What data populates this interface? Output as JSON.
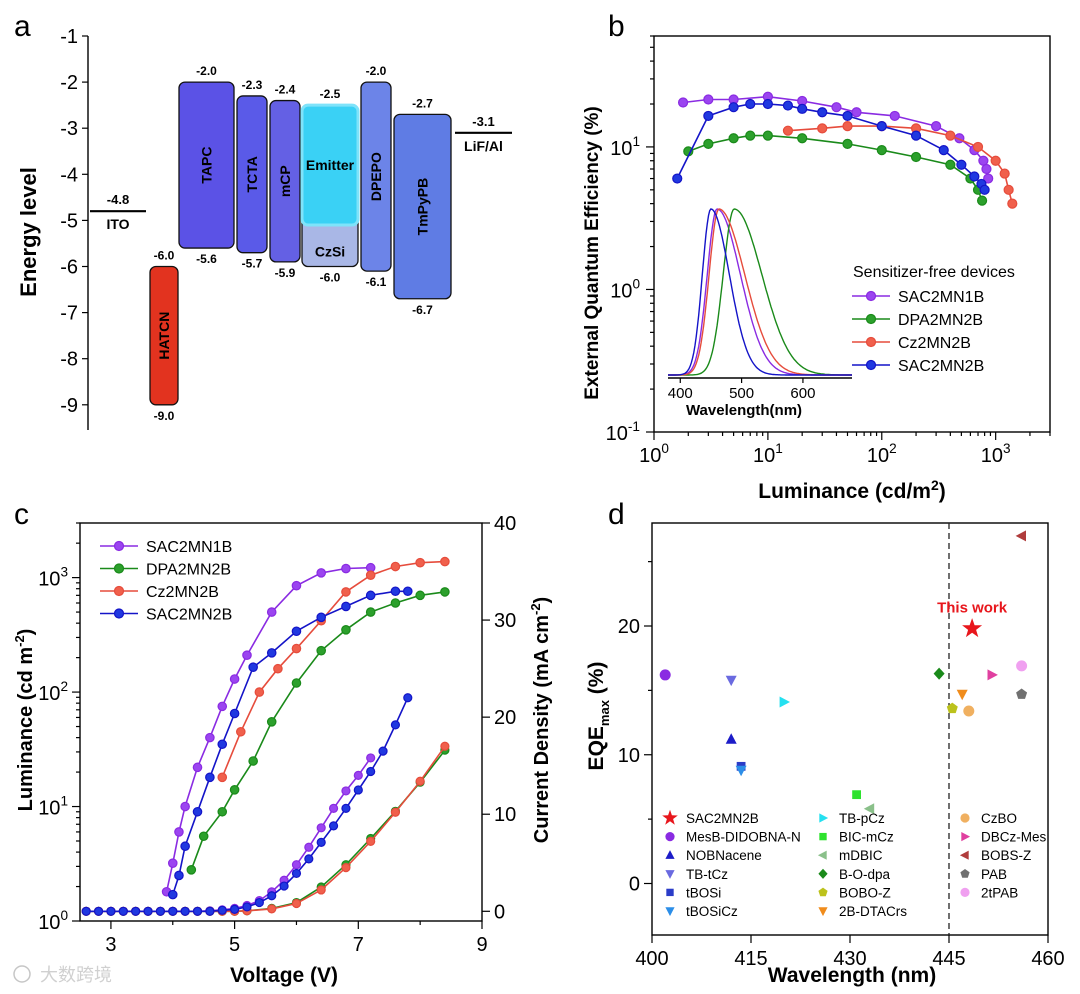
{
  "panels": {
    "a": {
      "letter": "a",
      "ylabel": "Energy level",
      "ylim": [
        -9.5,
        -1
      ],
      "yticks": [
        -1,
        -2,
        -3,
        -4,
        -5,
        -6,
        -7,
        -8,
        -9
      ],
      "levels": [
        {
          "name": "ITO",
          "value": -4.8,
          "value_label": "-4.8",
          "color": "#000000"
        },
        {
          "name": "LiF/Al",
          "value": -3.1,
          "value_label": "-3.1",
          "color": "#000000"
        }
      ],
      "layers": [
        {
          "name": "HATCN",
          "top": -6.0,
          "bottom": -9.0,
          "top_label": "-6.0",
          "bottom_label": "-9.0",
          "color": "#e2331f"
        },
        {
          "name": "TAPC",
          "top": -2.0,
          "bottom": -5.6,
          "top_label": "-2.0",
          "bottom_label": "-5.6",
          "color": "#5b52e6"
        },
        {
          "name": "TCTA",
          "top": -2.3,
          "bottom": -5.7,
          "top_label": "-2.3",
          "bottom_label": "-5.7",
          "color": "#5a5ae8"
        },
        {
          "name": "mCP",
          "top": -2.4,
          "bottom": -5.9,
          "top_label": "-2.4",
          "bottom_label": "-5.9",
          "color": "#6460e4"
        },
        {
          "name": "CzSi",
          "top": -2.5,
          "bottom": -6.0,
          "top_label": "-2.5",
          "bottom_label": "-6.0",
          "color": "#a9b7e6"
        },
        {
          "name": "Emitter",
          "top": -2.5,
          "bottom": -5.1,
          "color": "#3ad1f5"
        },
        {
          "name": "DPEPO",
          "top": -2.0,
          "bottom": -6.1,
          "top_label": "-2.0",
          "bottom_label": "-6.1",
          "color": "#6c84e8"
        },
        {
          "name": "TmPyPB",
          "top": -2.7,
          "bottom": -6.7,
          "top_label": "-2.7",
          "bottom_label": "-6.7",
          "color": "#5f7ce4"
        }
      ]
    },
    "b": {
      "letter": "b",
      "type": "line",
      "xlabel": "Luminance (cd/m",
      "xlabel_sup": "2",
      "xlabel_end": ")",
      "ylabel": "External Quantum Efficiency (%)",
      "xscale": "log",
      "yscale": "log",
      "xlim": [
        1,
        3000
      ],
      "ylim": [
        0.1,
        60
      ],
      "xticks": [
        {
          "v": 1,
          "base": "10",
          "exp": "0"
        },
        {
          "v": 10,
          "base": "10",
          "exp": "1"
        },
        {
          "v": 100,
          "base": "10",
          "exp": "2"
        },
        {
          "v": 1000,
          "base": "10",
          "exp": "3"
        }
      ],
      "yticks": [
        {
          "v": 0.1,
          "base": "10",
          "exp": "-1"
        },
        {
          "v": 1,
          "base": "10",
          "exp": "0"
        },
        {
          "v": 10,
          "base": "10",
          "exp": "1"
        }
      ],
      "legend_title": "Sensitizer-free devices",
      "series": [
        {
          "name": "SAC2MN1B",
          "color": "#8a2be2",
          "fill": "#9b45f0",
          "x": [
            1.8,
            3,
            5,
            10,
            20,
            40,
            60,
            130,
            300,
            480,
            650,
            780,
            830,
            860
          ],
          "y": [
            20.5,
            21.5,
            21.5,
            22.5,
            21,
            19,
            17.5,
            16.5,
            14,
            11.5,
            9.5,
            8,
            7,
            6
          ]
        },
        {
          "name": "DPA2MN2B",
          "color": "#1a8a1a",
          "fill": "#2ca02c",
          "x": [
            2,
            3,
            5,
            7,
            10,
            20,
            50,
            100,
            200,
            400,
            600,
            700,
            760
          ],
          "y": [
            9.3,
            10.5,
            11.5,
            12,
            12,
            11.5,
            10.5,
            9.5,
            8.5,
            7.5,
            6,
            5,
            4.2
          ]
        },
        {
          "name": "Cz2MN2B",
          "color": "#e64c3c",
          "fill": "#f0604c",
          "x": [
            15,
            30,
            50,
            100,
            200,
            400,
            700,
            1000,
            1200,
            1300,
            1400
          ],
          "y": [
            13,
            13.5,
            14,
            14,
            13.5,
            12,
            10,
            8,
            6.5,
            5,
            4
          ]
        },
        {
          "name": "SAC2MN2B",
          "color": "#1414c8",
          "fill": "#2038e0",
          "x": [
            1.6,
            3,
            5,
            7,
            10,
            15,
            20,
            30,
            50,
            100,
            200,
            350,
            500,
            650,
            750,
            800
          ],
          "y": [
            6,
            16.5,
            19,
            20,
            20,
            19.5,
            18.5,
            17.5,
            16.5,
            14,
            12,
            9.5,
            7.5,
            6.2,
            5.5,
            5
          ]
        }
      ],
      "inset": {
        "xlabel": "Wavelength(nm)",
        "xlim": [
          380,
          680
        ],
        "xticks": [
          400,
          500,
          600
        ],
        "series": [
          {
            "name": "SAC2MN1B",
            "color": "#8a2be2",
            "peak": 460,
            "sigL": 16,
            "sigR": 38
          },
          {
            "name": "DPA2MN2B",
            "color": "#1a8a1a",
            "peak": 488,
            "sigL": 18,
            "sigR": 45
          },
          {
            "name": "Cz2MN2B",
            "color": "#e64c3c",
            "peak": 463,
            "sigL": 16,
            "sigR": 42
          },
          {
            "name": "SAC2MN2B",
            "color": "#1414c8",
            "peak": 450,
            "sigL": 14,
            "sigR": 30
          }
        ]
      }
    },
    "c": {
      "letter": "c",
      "type": "line",
      "xlabel": "Voltage (V)",
      "ylabel_left": "Luminance (cd m",
      "ylabel_left_sup": "-2",
      "ylabel_left_end": ")",
      "ylabel_right": "Current Density (mA cm",
      "ylabel_right_sup": "-2",
      "ylabel_right_end": ")",
      "xlim": [
        2.5,
        9
      ],
      "xticks": [
        3,
        5,
        7,
        9
      ],
      "ylim_left": [
        1,
        3000
      ],
      "yscale_left": "log",
      "yticks_left": [
        {
          "v": 1,
          "base": "10",
          "exp": "0"
        },
        {
          "v": 10,
          "base": "10",
          "exp": "1"
        },
        {
          "v": 100,
          "base": "10",
          "exp": "2"
        },
        {
          "v": 1000,
          "base": "10",
          "exp": "3"
        }
      ],
      "ylim_right": [
        -1,
        40
      ],
      "yticks_right": [
        0,
        10,
        20,
        30,
        40
      ],
      "luminance": [
        {
          "name": "SAC2MN1B",
          "color": "#8a2be2",
          "fill": "#9b45f0",
          "x": [
            3.9,
            4.0,
            4.1,
            4.2,
            4.4,
            4.6,
            4.8,
            5.0,
            5.2,
            5.6,
            6.0,
            6.4,
            6.8,
            7.2
          ],
          "y": [
            1.8,
            3.2,
            6,
            10,
            22,
            40,
            75,
            130,
            210,
            500,
            850,
            1100,
            1200,
            1220
          ]
        },
        {
          "name": "DPA2MN2B",
          "color": "#1a8a1a",
          "fill": "#2ca02c",
          "x": [
            4.3,
            4.5,
            4.8,
            5.0,
            5.3,
            5.6,
            6.0,
            6.4,
            6.8,
            7.2,
            7.6,
            8.0,
            8.4
          ],
          "y": [
            2.8,
            5.5,
            9,
            14,
            25,
            55,
            120,
            230,
            350,
            500,
            600,
            700,
            750
          ]
        },
        {
          "name": "Cz2MN2B",
          "color": "#e64c3c",
          "fill": "#f0604c",
          "x": [
            4.8,
            5.1,
            5.4,
            5.7,
            6.0,
            6.4,
            6.8,
            7.2,
            7.6,
            8.0,
            8.4
          ],
          "y": [
            18,
            45,
            100,
            160,
            240,
            420,
            750,
            1050,
            1250,
            1350,
            1380
          ]
        },
        {
          "name": "SAC2MN2B",
          "color": "#1414c8",
          "fill": "#2038e0",
          "x": [
            4.0,
            4.1,
            4.2,
            4.4,
            4.6,
            4.8,
            5.0,
            5.3,
            5.6,
            6.0,
            6.4,
            6.8,
            7.2,
            7.6,
            7.8
          ],
          "y": [
            1.7,
            2.5,
            4.5,
            9,
            18,
            35,
            65,
            165,
            220,
            340,
            450,
            560,
            700,
            760,
            760
          ]
        }
      ],
      "current_density": [
        {
          "name": "SAC2MN1B",
          "color": "#8a2be2",
          "fill": "#9b45f0",
          "x": [
            2.6,
            2.8,
            3.0,
            3.2,
            3.4,
            3.6,
            3.8,
            4.0,
            4.2,
            4.4,
            4.6,
            4.8,
            5.0,
            5.2,
            5.4,
            5.6,
            5.8,
            6.0,
            6.2,
            6.4,
            6.6,
            6.8,
            7.0,
            7.2
          ],
          "y": [
            0,
            0,
            0,
            0,
            0,
            0,
            0,
            0,
            0,
            0,
            0.05,
            0.15,
            0.3,
            0.6,
            1.1,
            2.0,
            3.2,
            4.8,
            6.6,
            8.6,
            10.6,
            12.4,
            14.0,
            15.8
          ]
        },
        {
          "name": "DPA2MN2B",
          "color": "#1a8a1a",
          "fill": "#2ca02c",
          "x": [
            2.6,
            2.8,
            3.0,
            3.2,
            3.4,
            3.6,
            3.8,
            4.0,
            4.2,
            4.4,
            4.6,
            4.8,
            5.0,
            5.2,
            5.6,
            6.0,
            6.4,
            6.8,
            7.2,
            7.6,
            8.0,
            8.4
          ],
          "y": [
            0,
            0,
            0,
            0,
            0,
            0,
            0,
            0,
            0,
            0,
            0,
            0,
            0,
            0.05,
            0.3,
            0.9,
            2.5,
            4.8,
            7.5,
            10.3,
            13.3,
            16.6
          ]
        },
        {
          "name": "Cz2MN2B",
          "color": "#e64c3c",
          "fill": "#f0604c",
          "x": [
            2.6,
            2.8,
            3.0,
            3.2,
            3.4,
            3.6,
            3.8,
            4.0,
            4.2,
            4.4,
            4.6,
            4.8,
            5.0,
            5.2,
            5.6,
            6.0,
            6.4,
            6.8,
            7.2,
            7.6,
            8.0,
            8.4
          ],
          "y": [
            0,
            0,
            0,
            0,
            0,
            0,
            0,
            0,
            0,
            0,
            0,
            0,
            0,
            0.05,
            0.25,
            0.8,
            2.2,
            4.5,
            7.2,
            10.2,
            13.4,
            17.0
          ]
        },
        {
          "name": "SAC2MN2B",
          "color": "#1414c8",
          "fill": "#2038e0",
          "x": [
            2.6,
            2.8,
            3.0,
            3.2,
            3.4,
            3.6,
            3.8,
            4.0,
            4.2,
            4.4,
            4.6,
            4.8,
            5.0,
            5.2,
            5.4,
            5.6,
            5.8,
            6.0,
            6.2,
            6.4,
            6.6,
            6.8,
            7.0,
            7.2,
            7.4,
            7.6,
            7.8
          ],
          "y": [
            0,
            0,
            0,
            0,
            0,
            0,
            0,
            0,
            0,
            0,
            0,
            0.1,
            0.2,
            0.45,
            0.9,
            1.6,
            2.6,
            3.9,
            5.4,
            7.1,
            8.8,
            10.6,
            12.5,
            14.4,
            16.5,
            19.2,
            22.0
          ]
        }
      ]
    },
    "d": {
      "letter": "d",
      "type": "scatter",
      "xlabel": "Wavelength (nm)",
      "ylabel": "EQE",
      "ylabel_sub": "max",
      "ylabel_end": " (%)",
      "xlim": [
        400,
        460
      ],
      "ylim": [
        -4,
        28
      ],
      "xticks": [
        400,
        415,
        430,
        445,
        460
      ],
      "yticks": [
        0,
        10,
        20
      ],
      "dashed_x": 445,
      "annotation": "This work",
      "points": [
        {
          "name": "SAC2MN2B",
          "x": 448.5,
          "y": 19.8,
          "marker": "star",
          "color": "#e8161c"
        },
        {
          "name": "MesB-DIDOBNA-N",
          "x": 402,
          "y": 16.2,
          "marker": "circle",
          "color": "#8a2be2"
        },
        {
          "name": "NOBNacene",
          "x": 412,
          "y": 11.2,
          "marker": "triangle-up",
          "color": "#1c1cc8"
        },
        {
          "name": "TB-tCz",
          "x": 412,
          "y": 15.8,
          "marker": "triangle-down",
          "color": "#6a6ae0"
        },
        {
          "name": "tBOSi",
          "x": 413.5,
          "y": 9.1,
          "marker": "square",
          "color": "#2a3cc8"
        },
        {
          "name": "tBOSiCz",
          "x": 413.5,
          "y": 8.8,
          "marker": "triangle-down",
          "color": "#2c8ee8"
        },
        {
          "name": "TB-pCz",
          "x": 420,
          "y": 14.1,
          "marker": "triangle-right",
          "color": "#24e0f0"
        },
        {
          "name": "BIC-mCz",
          "x": 431,
          "y": 6.9,
          "marker": "square",
          "color": "#2ee22e"
        },
        {
          "name": "mDBIC",
          "x": 433,
          "y": 5.8,
          "marker": "triangle-left",
          "color": "#8ac08a"
        },
        {
          "name": "B-O-dpa",
          "x": 443.5,
          "y": 16.3,
          "marker": "diamond",
          "color": "#1a8a1a"
        },
        {
          "name": "BOBO-Z",
          "x": 445.5,
          "y": 13.6,
          "marker": "pentagon",
          "color": "#bcc21c"
        },
        {
          "name": "2B-DTACrs",
          "x": 447,
          "y": 14.7,
          "marker": "triangle-down",
          "color": "#f08c1c"
        },
        {
          "name": "CzBO",
          "x": 448,
          "y": 13.4,
          "marker": "circle",
          "color": "#f0b060"
        },
        {
          "name": "DBCz-Mes",
          "x": 451.5,
          "y": 16.2,
          "marker": "triangle-right",
          "color": "#e040a0"
        },
        {
          "name": "BOBS-Z",
          "x": 456,
          "y": 27.0,
          "marker": "triangle-left",
          "color": "#b03c3c"
        },
        {
          "name": "PAB",
          "x": 456,
          "y": 14.7,
          "marker": "pentagon",
          "color": "#707070"
        },
        {
          "name": "2tPAB",
          "x": 456,
          "y": 16.9,
          "marker": "circle",
          "color": "#f0a0f0"
        }
      ]
    }
  },
  "watermark": "大数跨境"
}
